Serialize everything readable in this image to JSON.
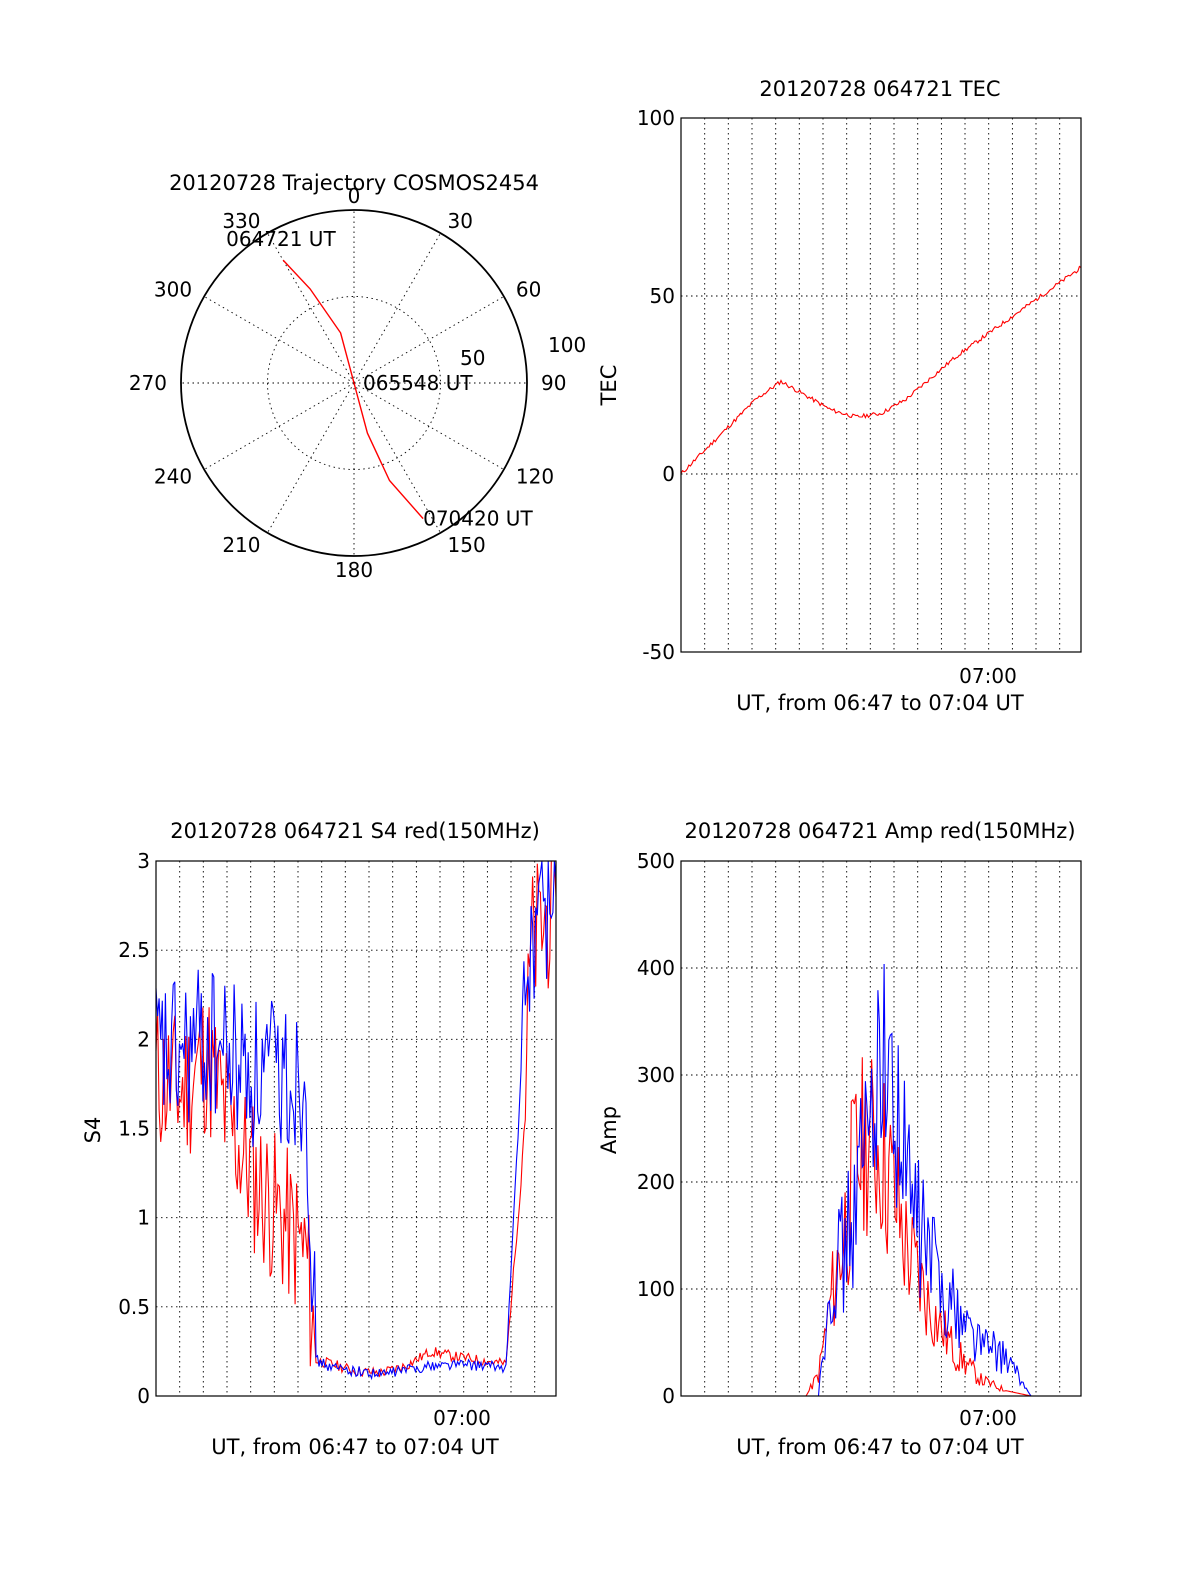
{
  "chart_data": [
    {
      "type": "polar",
      "title": "20120728 Trajectory COSMOS2454",
      "azimuth_labels": [
        "0",
        "30",
        "60",
        "90",
        "120",
        "150",
        "180",
        "210",
        "240",
        "270",
        "300",
        "330"
      ],
      "radial_labels": [
        "50",
        "100"
      ],
      "radial_range": [
        0,
        100
      ],
      "grid": true,
      "series": [
        {
          "color": "#ff0000",
          "points": [
            {
              "azimuth": 330,
              "radius": 82
            },
            {
              "azimuth": 335,
              "radius": 60
            },
            {
              "azimuth": 345,
              "radius": 30
            },
            {
              "azimuth": 0,
              "radius": 0
            },
            {
              "azimuth": 165,
              "radius": 30
            },
            {
              "azimuth": 160,
              "radius": 60
            },
            {
              "azimuth": 153,
              "radius": 88
            }
          ]
        }
      ],
      "annotations": [
        {
          "text": "064721 UT",
          "azimuth": 330,
          "radius": 82
        },
        {
          "text": "065548 UT",
          "azimuth": 0,
          "radius": 0
        },
        {
          "text": "070420 UT",
          "azimuth": 153,
          "radius": 88
        }
      ]
    },
    {
      "type": "line",
      "title": "20120728 064721 TEC",
      "xlabel": "UT, from 06:47 to 07:04 UT",
      "ylabel": "TEC",
      "x_tick_label": "07:00",
      "ylim": [
        -50,
        100
      ],
      "y_ticks": [
        "100",
        "50",
        "0",
        "-50"
      ],
      "grid": true,
      "series": [
        {
          "color": "#ff0000",
          "points": [
            [
              0,
              0
            ],
            [
              1,
              7
            ],
            [
              2,
              14
            ],
            [
              3,
              21
            ],
            [
              4,
              26
            ],
            [
              5,
              22
            ],
            [
              6,
              18
            ],
            [
              7,
              16
            ],
            [
              8,
              17
            ],
            [
              9,
              21
            ],
            [
              10,
              27
            ],
            [
              11,
              33
            ],
            [
              12,
              38
            ],
            [
              13,
              43
            ],
            [
              14,
              48
            ],
            [
              15,
              53
            ],
            [
              16,
              58
            ]
          ]
        }
      ]
    },
    {
      "type": "line",
      "title": "20120728 064721 S4 red(150MHz)",
      "xlabel": "UT, from 06:47 to 07:04 UT",
      "ylabel": "S4",
      "x_tick_label": "07:00",
      "ylim": [
        0,
        3
      ],
      "y_ticks": [
        "3",
        "2.5",
        "2",
        "1.5",
        "1",
        "0.5",
        "0"
      ],
      "grid": true,
      "series": [
        {
          "color": "#ff0000",
          "points": [
            [
              0,
              1.8
            ],
            [
              1,
              1.7
            ],
            [
              2,
              1.9
            ],
            [
              3,
              1.5
            ],
            [
              4,
              1.2
            ],
            [
              5,
              1.0
            ],
            [
              6,
              0.8
            ],
            [
              6.4,
              0.2
            ],
            [
              7,
              0.18
            ],
            [
              8,
              0.14
            ],
            [
              9,
              0.13
            ],
            [
              10,
              0.17
            ],
            [
              11,
              0.25
            ],
            [
              12,
              0.22
            ],
            [
              13,
              0.2
            ],
            [
              14,
              0.18
            ],
            [
              14.6,
              1.2
            ],
            [
              15,
              2.5
            ],
            [
              16,
              2.8
            ]
          ]
        },
        {
          "color": "#0000ff",
          "points": [
            [
              0,
              1.9
            ],
            [
              1,
              1.9
            ],
            [
              2,
              2.0
            ],
            [
              3,
              1.9
            ],
            [
              4,
              1.8
            ],
            [
              5,
              1.8
            ],
            [
              6,
              1.8
            ],
            [
              6.4,
              0.2
            ],
            [
              7,
              0.16
            ],
            [
              8,
              0.14
            ],
            [
              9,
              0.12
            ],
            [
              10,
              0.15
            ],
            [
              11,
              0.17
            ],
            [
              12,
              0.18
            ],
            [
              13,
              0.17
            ],
            [
              14,
              0.16
            ],
            [
              14.6,
              1.8
            ],
            [
              15,
              2.6
            ],
            [
              16,
              2.9
            ]
          ]
        }
      ]
    },
    {
      "type": "line",
      "title": "20120728 064721 Amp red(150MHz)",
      "xlabel": "UT, from 06:47 to 07:04 UT",
      "ylabel": "Amp",
      "x_tick_label": "07:00",
      "ylim": [
        0,
        500
      ],
      "y_ticks": [
        "500",
        "400",
        "300",
        "200",
        "100",
        "0"
      ],
      "grid": true,
      "series": [
        {
          "color": "#ff0000",
          "points": [
            [
              0,
              0
            ],
            [
              5,
              0
            ],
            [
              5.5,
              20
            ],
            [
              6,
              90
            ],
            [
              6.5,
              150
            ],
            [
              7,
              220
            ],
            [
              7.5,
              240
            ],
            [
              8,
              230
            ],
            [
              8.5,
              190
            ],
            [
              9,
              140
            ],
            [
              9.5,
              110
            ],
            [
              10,
              80
            ],
            [
              11,
              40
            ],
            [
              12,
              15
            ],
            [
              13,
              5
            ],
            [
              14,
              0
            ],
            [
              16,
              0
            ]
          ]
        },
        {
          "color": "#0000ff",
          "points": [
            [
              0,
              0
            ],
            [
              5.5,
              0
            ],
            [
              6,
              120
            ],
            [
              6.5,
              130
            ],
            [
              7,
              180
            ],
            [
              7.5,
              250
            ],
            [
              8,
              330
            ],
            [
              8.5,
              280
            ],
            [
              9,
              200
            ],
            [
              9.5,
              160
            ],
            [
              10,
              130
            ],
            [
              11,
              80
            ],
            [
              12,
              50
            ],
            [
              13,
              35
            ],
            [
              14,
              0
            ],
            [
              16,
              0
            ]
          ]
        }
      ]
    }
  ]
}
